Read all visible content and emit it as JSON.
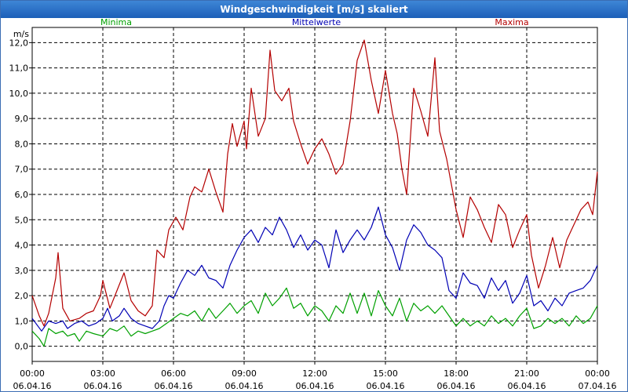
{
  "window": {
    "title": "Windgeschwindigkeit [m/s] skaliert"
  },
  "chart_data": {
    "type": "line",
    "title": "Windgeschwindigkeit [m/s] skaliert",
    "ylabel": "m/s",
    "xlabel": "",
    "ylim": [
      -0.6,
      12.6
    ],
    "xlim": [
      0,
      24
    ],
    "grid": true,
    "legend_placement": "top",
    "y_ticks": [
      "0,0",
      "1,0",
      "2,0",
      "3,0",
      "4,0",
      "5,0",
      "6,0",
      "7,0",
      "8,0",
      "9,0",
      "10,0",
      "11,0",
      "12,0"
    ],
    "x_ticks": [
      {
        "time": "00:00",
        "date": "06.04.16"
      },
      {
        "time": "03:00",
        "date": "06.04.16"
      },
      {
        "time": "06:00",
        "date": "06.04.16"
      },
      {
        "time": "09:00",
        "date": "06.04.16"
      },
      {
        "time": "12:00",
        "date": "06.04.16"
      },
      {
        "time": "15:00",
        "date": "06.04.16"
      },
      {
        "time": "18:00",
        "date": "06.04.16"
      },
      {
        "time": "21:00",
        "date": "06.04.16"
      },
      {
        "time": "00:00",
        "date": "07.04.16"
      }
    ],
    "series": [
      {
        "name": "Minima",
        "color": "#00a000",
        "points": [
          [
            0,
            0.6
          ],
          [
            0.3,
            0.3
          ],
          [
            0.5,
            0.0
          ],
          [
            0.7,
            0.7
          ],
          [
            1.0,
            0.5
          ],
          [
            1.3,
            0.6
          ],
          [
            1.5,
            0.4
          ],
          [
            1.8,
            0.5
          ],
          [
            2.0,
            0.2
          ],
          [
            2.3,
            0.6
          ],
          [
            2.6,
            0.5
          ],
          [
            3.0,
            0.4
          ],
          [
            3.3,
            0.7
          ],
          [
            3.6,
            0.6
          ],
          [
            3.9,
            0.8
          ],
          [
            4.2,
            0.4
          ],
          [
            4.5,
            0.6
          ],
          [
            4.8,
            0.5
          ],
          [
            5.1,
            0.6
          ],
          [
            5.4,
            0.7
          ],
          [
            5.7,
            0.9
          ],
          [
            6.0,
            1.1
          ],
          [
            6.3,
            1.3
          ],
          [
            6.6,
            1.2
          ],
          [
            6.9,
            1.4
          ],
          [
            7.2,
            1.0
          ],
          [
            7.5,
            1.5
          ],
          [
            7.8,
            1.1
          ],
          [
            8.1,
            1.4
          ],
          [
            8.4,
            1.7
          ],
          [
            8.7,
            1.3
          ],
          [
            9.0,
            1.6
          ],
          [
            9.3,
            1.8
          ],
          [
            9.6,
            1.3
          ],
          [
            9.9,
            2.1
          ],
          [
            10.2,
            1.6
          ],
          [
            10.5,
            1.9
          ],
          [
            10.8,
            2.3
          ],
          [
            11.1,
            1.5
          ],
          [
            11.4,
            1.7
          ],
          [
            11.7,
            1.2
          ],
          [
            12.0,
            1.6
          ],
          [
            12.3,
            1.4
          ],
          [
            12.6,
            1.0
          ],
          [
            12.9,
            1.6
          ],
          [
            13.2,
            1.3
          ],
          [
            13.5,
            2.1
          ],
          [
            13.8,
            1.3
          ],
          [
            14.1,
            2.1
          ],
          [
            14.4,
            1.2
          ],
          [
            14.7,
            2.2
          ],
          [
            15.0,
            1.6
          ],
          [
            15.3,
            1.2
          ],
          [
            15.6,
            1.9
          ],
          [
            15.9,
            1.0
          ],
          [
            16.2,
            1.7
          ],
          [
            16.5,
            1.4
          ],
          [
            16.8,
            1.6
          ],
          [
            17.1,
            1.3
          ],
          [
            17.4,
            1.6
          ],
          [
            17.7,
            1.2
          ],
          [
            18.0,
            0.8
          ],
          [
            18.3,
            1.1
          ],
          [
            18.6,
            0.8
          ],
          [
            18.9,
            1.0
          ],
          [
            19.2,
            0.8
          ],
          [
            19.5,
            1.2
          ],
          [
            19.8,
            0.9
          ],
          [
            20.1,
            1.1
          ],
          [
            20.4,
            0.8
          ],
          [
            20.7,
            1.2
          ],
          [
            21.0,
            1.5
          ],
          [
            21.3,
            0.7
          ],
          [
            21.6,
            0.8
          ],
          [
            21.9,
            1.1
          ],
          [
            22.2,
            0.9
          ],
          [
            22.5,
            1.1
          ],
          [
            22.8,
            0.8
          ],
          [
            23.1,
            1.2
          ],
          [
            23.4,
            0.9
          ],
          [
            23.7,
            1.1
          ],
          [
            24.0,
            1.6
          ]
        ]
      },
      {
        "name": "Mittelwerte",
        "color": "#0000b4",
        "points": [
          [
            0,
            1.1
          ],
          [
            0.4,
            0.6
          ],
          [
            0.7,
            1.0
          ],
          [
            1.0,
            0.9
          ],
          [
            1.3,
            1.0
          ],
          [
            1.5,
            0.7
          ],
          [
            1.8,
            0.9
          ],
          [
            2.1,
            1.0
          ],
          [
            2.4,
            0.8
          ],
          [
            2.7,
            0.9
          ],
          [
            3.0,
            1.1
          ],
          [
            3.2,
            1.5
          ],
          [
            3.4,
            1.0
          ],
          [
            3.7,
            1.2
          ],
          [
            3.9,
            1.5
          ],
          [
            4.2,
            1.1
          ],
          [
            4.5,
            0.9
          ],
          [
            4.8,
            0.8
          ],
          [
            5.1,
            0.7
          ],
          [
            5.4,
            1.0
          ],
          [
            5.6,
            1.6
          ],
          [
            5.8,
            2.0
          ],
          [
            6.0,
            1.9
          ],
          [
            6.3,
            2.5
          ],
          [
            6.6,
            3.0
          ],
          [
            6.9,
            2.8
          ],
          [
            7.2,
            3.2
          ],
          [
            7.5,
            2.7
          ],
          [
            7.8,
            2.6
          ],
          [
            8.1,
            2.3
          ],
          [
            8.4,
            3.2
          ],
          [
            8.7,
            3.8
          ],
          [
            9.0,
            4.3
          ],
          [
            9.3,
            4.6
          ],
          [
            9.6,
            4.1
          ],
          [
            9.9,
            4.7
          ],
          [
            10.2,
            4.4
          ],
          [
            10.5,
            5.1
          ],
          [
            10.8,
            4.6
          ],
          [
            11.1,
            3.9
          ],
          [
            11.4,
            4.4
          ],
          [
            11.7,
            3.8
          ],
          [
            12.0,
            4.2
          ],
          [
            12.3,
            4.0
          ],
          [
            12.6,
            3.1
          ],
          [
            12.9,
            4.6
          ],
          [
            13.2,
            3.7
          ],
          [
            13.5,
            4.2
          ],
          [
            13.8,
            4.6
          ],
          [
            14.1,
            4.2
          ],
          [
            14.4,
            4.7
          ],
          [
            14.7,
            5.5
          ],
          [
            15.0,
            4.4
          ],
          [
            15.3,
            3.9
          ],
          [
            15.6,
            3.0
          ],
          [
            15.9,
            4.2
          ],
          [
            16.2,
            4.8
          ],
          [
            16.5,
            4.5
          ],
          [
            16.8,
            4.0
          ],
          [
            17.1,
            3.8
          ],
          [
            17.4,
            3.5
          ],
          [
            17.7,
            2.2
          ],
          [
            18.0,
            1.9
          ],
          [
            18.3,
            2.9
          ],
          [
            18.6,
            2.5
          ],
          [
            18.9,
            2.4
          ],
          [
            19.2,
            1.9
          ],
          [
            19.5,
            2.7
          ],
          [
            19.8,
            2.2
          ],
          [
            20.1,
            2.6
          ],
          [
            20.4,
            1.7
          ],
          [
            20.7,
            2.1
          ],
          [
            21.0,
            2.8
          ],
          [
            21.3,
            1.6
          ],
          [
            21.6,
            1.8
          ],
          [
            21.9,
            1.4
          ],
          [
            22.2,
            1.9
          ],
          [
            22.5,
            1.6
          ],
          [
            22.8,
            2.1
          ],
          [
            23.1,
            2.2
          ],
          [
            23.4,
            2.3
          ],
          [
            23.7,
            2.6
          ],
          [
            24.0,
            3.2
          ]
        ]
      },
      {
        "name": "Maxima",
        "color": "#b40000",
        "points": [
          [
            0,
            2.0
          ],
          [
            0.3,
            1.2
          ],
          [
            0.5,
            0.8
          ],
          [
            0.7,
            1.3
          ],
          [
            1.0,
            2.7
          ],
          [
            1.1,
            3.7
          ],
          [
            1.3,
            1.5
          ],
          [
            1.6,
            1.0
          ],
          [
            2.0,
            1.1
          ],
          [
            2.3,
            1.3
          ],
          [
            2.6,
            1.4
          ],
          [
            2.9,
            2.0
          ],
          [
            3.0,
            2.6
          ],
          [
            3.3,
            1.5
          ],
          [
            3.6,
            2.2
          ],
          [
            3.9,
            2.9
          ],
          [
            4.2,
            1.8
          ],
          [
            4.5,
            1.4
          ],
          [
            4.8,
            1.2
          ],
          [
            5.1,
            1.6
          ],
          [
            5.3,
            3.8
          ],
          [
            5.6,
            3.5
          ],
          [
            5.8,
            4.6
          ],
          [
            6.1,
            5.1
          ],
          [
            6.4,
            4.6
          ],
          [
            6.7,
            5.9
          ],
          [
            6.9,
            6.3
          ],
          [
            7.2,
            6.1
          ],
          [
            7.5,
            7.0
          ],
          [
            7.8,
            6.1
          ],
          [
            8.1,
            5.3
          ],
          [
            8.3,
            7.6
          ],
          [
            8.5,
            8.8
          ],
          [
            8.7,
            7.9
          ],
          [
            9.0,
            8.9
          ],
          [
            9.1,
            7.8
          ],
          [
            9.3,
            10.2
          ],
          [
            9.6,
            8.3
          ],
          [
            9.9,
            9.0
          ],
          [
            10.1,
            11.7
          ],
          [
            10.3,
            10.1
          ],
          [
            10.6,
            9.7
          ],
          [
            10.9,
            10.2
          ],
          [
            11.1,
            8.9
          ],
          [
            11.4,
            8.0
          ],
          [
            11.7,
            7.2
          ],
          [
            12.0,
            7.8
          ],
          [
            12.3,
            8.2
          ],
          [
            12.6,
            7.6
          ],
          [
            12.9,
            6.8
          ],
          [
            13.2,
            7.2
          ],
          [
            13.5,
            8.9
          ],
          [
            13.8,
            11.3
          ],
          [
            14.1,
            12.1
          ],
          [
            14.4,
            10.5
          ],
          [
            14.7,
            9.2
          ],
          [
            15.0,
            10.9
          ],
          [
            15.3,
            9.2
          ],
          [
            15.5,
            8.4
          ],
          [
            15.7,
            7.0
          ],
          [
            15.9,
            6.0
          ],
          [
            16.2,
            10.2
          ],
          [
            16.5,
            9.3
          ],
          [
            16.8,
            8.3
          ],
          [
            17.1,
            11.4
          ],
          [
            17.3,
            8.5
          ],
          [
            17.6,
            7.4
          ],
          [
            17.8,
            6.4
          ],
          [
            18.0,
            5.4
          ],
          [
            18.3,
            4.3
          ],
          [
            18.6,
            5.9
          ],
          [
            18.9,
            5.4
          ],
          [
            19.2,
            4.7
          ],
          [
            19.5,
            4.1
          ],
          [
            19.8,
            5.6
          ],
          [
            20.1,
            5.2
          ],
          [
            20.4,
            3.9
          ],
          [
            20.7,
            4.6
          ],
          [
            21.0,
            5.2
          ],
          [
            21.2,
            3.6
          ],
          [
            21.5,
            2.3
          ],
          [
            21.8,
            3.2
          ],
          [
            22.1,
            4.3
          ],
          [
            22.4,
            3.1
          ],
          [
            22.7,
            4.2
          ],
          [
            23.0,
            4.8
          ],
          [
            23.3,
            5.4
          ],
          [
            23.6,
            5.7
          ],
          [
            23.8,
            5.2
          ],
          [
            24.0,
            6.9
          ]
        ]
      }
    ]
  }
}
